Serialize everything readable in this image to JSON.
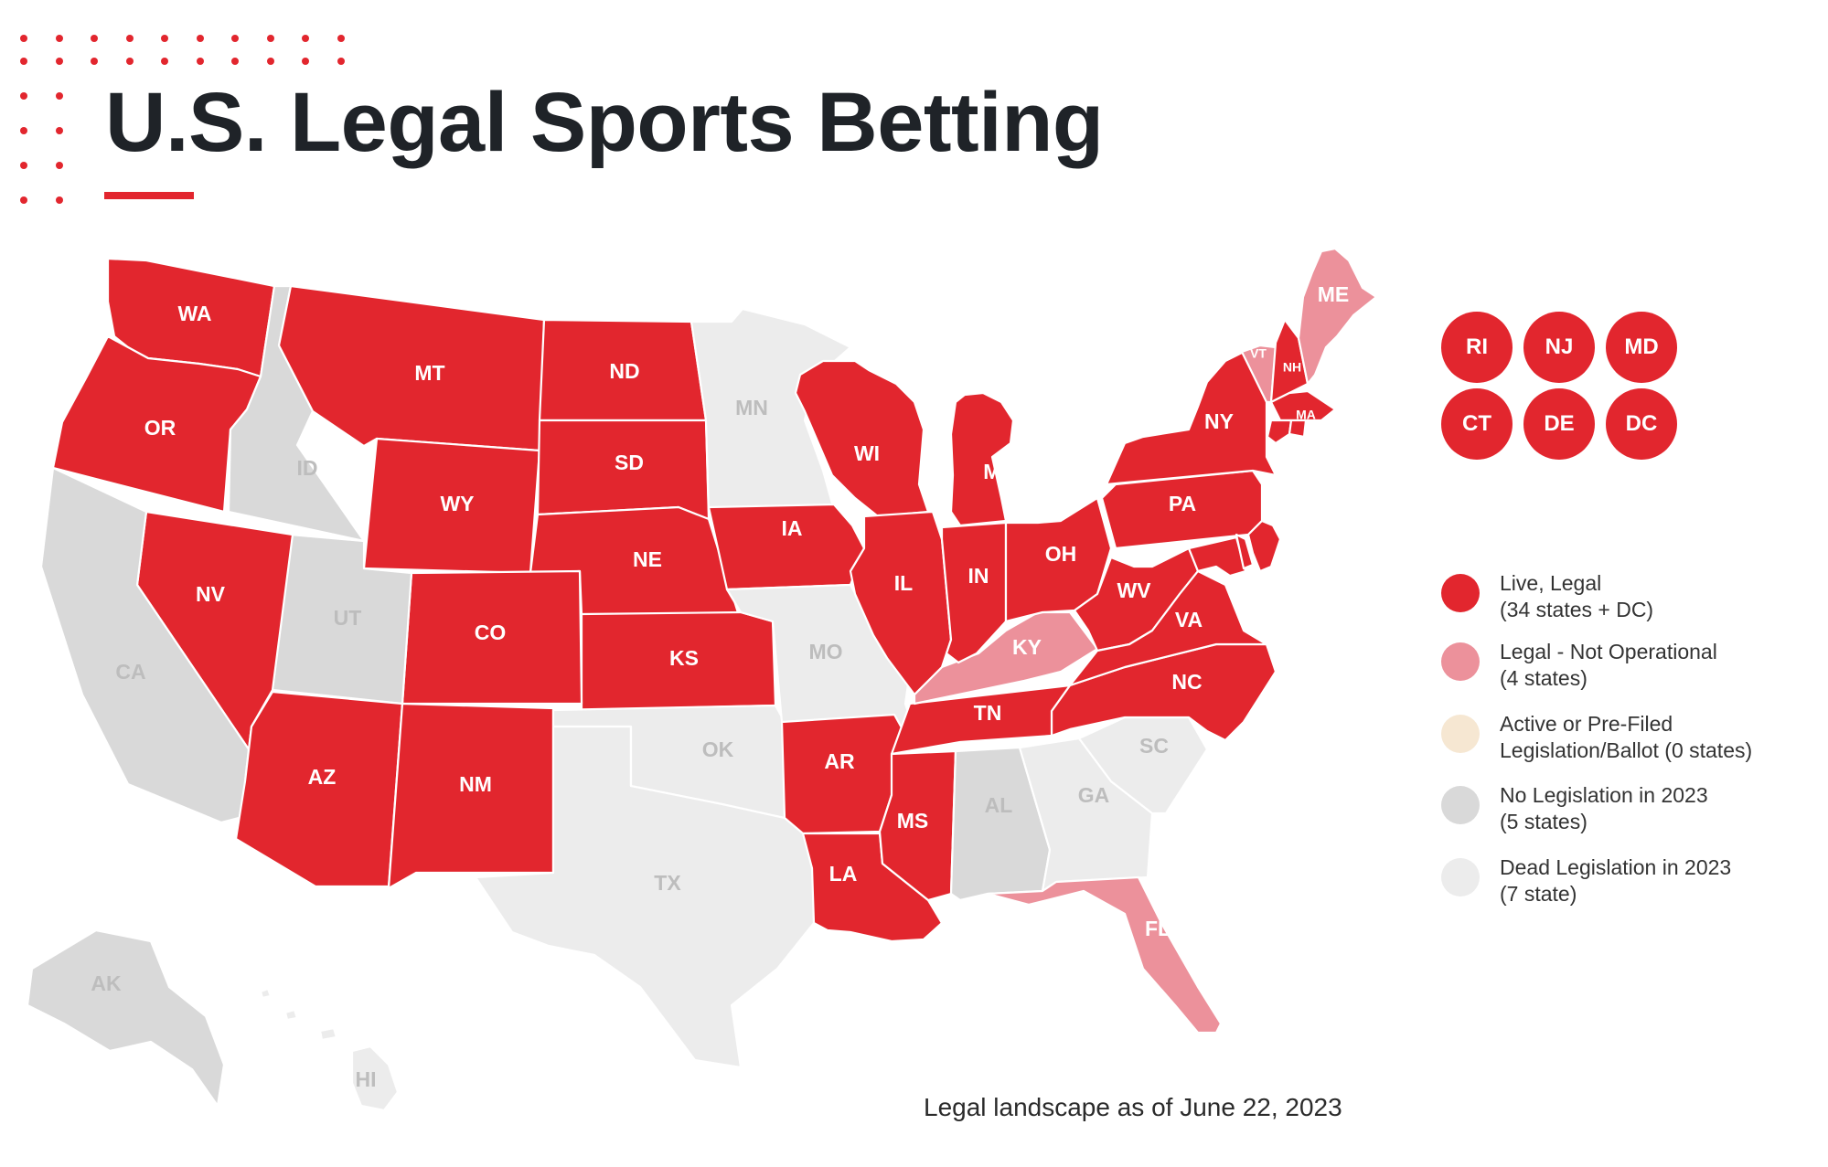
{
  "title": "U.S. Legal Sports Betting",
  "footer": "Legal landscape as of June 22, 2023",
  "colors": {
    "live": "#e2262e",
    "not_operational": "#ec919b",
    "pre_filed": "#f6e7d2",
    "no_legislation": "#d9d9d9",
    "dead_legislation": "#ececec",
    "accent": "#e2262e"
  },
  "legend": [
    {
      "status": "live",
      "line1": "Live, Legal",
      "line2": "(34 states + DC)"
    },
    {
      "status": "not_operational",
      "line1": "Legal - Not Operational",
      "line2": "(4 states)"
    },
    {
      "status": "pre_filed",
      "line1": "Active or Pre-Filed",
      "line2": "Legislation/Ballot (0 states)"
    },
    {
      "status": "no_legislation",
      "line1": "No Legislation in 2023",
      "line2": "(5 states)"
    },
    {
      "status": "dead_legislation",
      "line1": "Dead Legislation in 2023",
      "line2": "(7 state)"
    }
  ],
  "badges": [
    "RI",
    "NJ",
    "MD",
    "CT",
    "DE",
    "DC"
  ],
  "states": [
    {
      "abbr": "WA",
      "status": "live"
    },
    {
      "abbr": "OR",
      "status": "live"
    },
    {
      "abbr": "ID",
      "status": "no_legislation"
    },
    {
      "abbr": "MT",
      "status": "live"
    },
    {
      "abbr": "WY",
      "status": "live"
    },
    {
      "abbr": "ND",
      "status": "live"
    },
    {
      "abbr": "SD",
      "status": "live"
    },
    {
      "abbr": "NE",
      "status": "live"
    },
    {
      "abbr": "KS",
      "status": "live"
    },
    {
      "abbr": "CO",
      "status": "live"
    },
    {
      "abbr": "UT",
      "status": "no_legislation"
    },
    {
      "abbr": "NV",
      "status": "live"
    },
    {
      "abbr": "CA",
      "status": "no_legislation"
    },
    {
      "abbr": "AZ",
      "status": "live"
    },
    {
      "abbr": "NM",
      "status": "live"
    },
    {
      "abbr": "TX",
      "status": "dead_legislation"
    },
    {
      "abbr": "OK",
      "status": "dead_legislation"
    },
    {
      "abbr": "MN",
      "status": "dead_legislation"
    },
    {
      "abbr": "IA",
      "status": "live"
    },
    {
      "abbr": "MO",
      "status": "dead_legislation"
    },
    {
      "abbr": "AR",
      "status": "live"
    },
    {
      "abbr": "LA",
      "status": "live"
    },
    {
      "abbr": "MS",
      "status": "live"
    },
    {
      "abbr": "AL",
      "status": "no_legislation"
    },
    {
      "abbr": "GA",
      "status": "dead_legislation"
    },
    {
      "abbr": "FL",
      "status": "not_operational"
    },
    {
      "abbr": "SC",
      "status": "dead_legislation"
    },
    {
      "abbr": "NC",
      "status": "live"
    },
    {
      "abbr": "TN",
      "status": "live"
    },
    {
      "abbr": "KY",
      "status": "not_operational"
    },
    {
      "abbr": "WI",
      "status": "live"
    },
    {
      "abbr": "IL",
      "status": "live"
    },
    {
      "abbr": "MI",
      "status": "live"
    },
    {
      "abbr": "IN",
      "status": "live"
    },
    {
      "abbr": "OH",
      "status": "live"
    },
    {
      "abbr": "WV",
      "status": "live"
    },
    {
      "abbr": "VA",
      "status": "live"
    },
    {
      "abbr": "PA",
      "status": "live"
    },
    {
      "abbr": "NY",
      "status": "live"
    },
    {
      "abbr": "VT",
      "status": "not_operational"
    },
    {
      "abbr": "NH",
      "status": "live"
    },
    {
      "abbr": "ME",
      "status": "not_operational"
    },
    {
      "abbr": "MA",
      "status": "live"
    },
    {
      "abbr": "AK",
      "status": "no_legislation"
    },
    {
      "abbr": "HI",
      "status": "dead_legislation"
    },
    {
      "abbr": "NJ",
      "status": "live"
    },
    {
      "abbr": "MD",
      "status": "live"
    },
    {
      "abbr": "DE",
      "status": "live"
    },
    {
      "abbr": "CT",
      "status": "live"
    },
    {
      "abbr": "RI",
      "status": "live"
    }
  ]
}
